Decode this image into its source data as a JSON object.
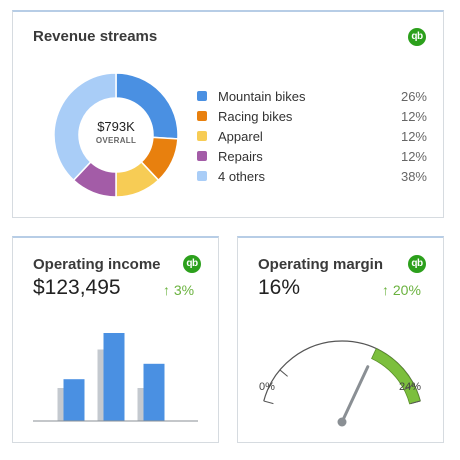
{
  "revenue": {
    "title": "Revenue streams",
    "badge": "qb",
    "total": "$793K",
    "total_sub": "OVERALL",
    "slices": [
      {
        "label": "Mountain bikes",
        "pct_text": "26%",
        "pct": 26,
        "color": "#4a90e2"
      },
      {
        "label": "Racing bikes",
        "pct_text": "12%",
        "pct": 12,
        "color": "#e8800e"
      },
      {
        "label": "Apparel",
        "pct_text": "12%",
        "pct": 12,
        "color": "#f7cc55"
      },
      {
        "label": "Repairs",
        "pct_text": "12%",
        "pct": 12,
        "color": "#a35ca7"
      },
      {
        "label": "4 others",
        "pct_text": "38%",
        "pct": 38,
        "color": "#a9cdf7"
      }
    ]
  },
  "income": {
    "title": "Operating income",
    "badge": "qb",
    "value": "$123,495",
    "delta": "↑ 3%",
    "bars": [
      {
        "current": 0.38,
        "previous": 0.3
      },
      {
        "current": 0.8,
        "previous": 0.65
      },
      {
        "current": 0.52,
        "previous": 0.3
      }
    ],
    "colors": {
      "current": "#4a90e2",
      "previous": "#c4c9cf"
    }
  },
  "margin": {
    "title": "Operating margin",
    "badge": "qb",
    "value": "16%",
    "delta": "↑ 20%",
    "min_label": "0%",
    "max_label": "24%",
    "gauge_min": 0,
    "gauge_max": 24,
    "needle_value": 16,
    "target_range": [
      16,
      24
    ],
    "tick_values": [
      4,
      22
    ],
    "colors": {
      "target": "#7cbf3d",
      "needle": "#8a8f94",
      "arc": "#555555"
    }
  }
}
